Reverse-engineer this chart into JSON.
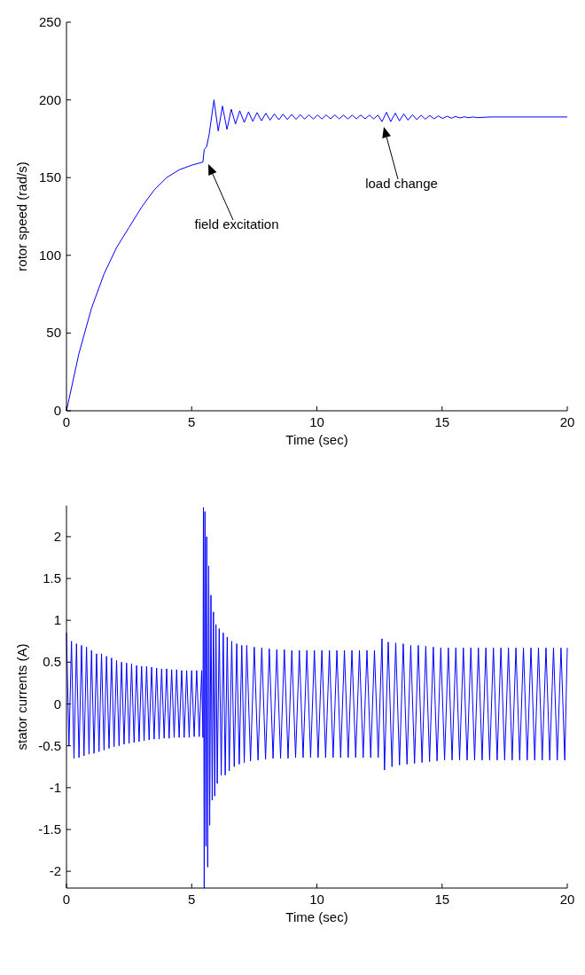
{
  "chart_data": [
    {
      "type": "line",
      "xlabel": "Time (sec)",
      "ylabel": "rotor speed (rad/s)",
      "xlim": [
        0,
        20
      ],
      "ylim": [
        0,
        250
      ],
      "xticks": [
        0,
        5,
        10,
        15,
        20
      ],
      "yticks": [
        0,
        50,
        100,
        150,
        200,
        250
      ],
      "grid": false,
      "line_style": "solid",
      "annotations": [
        "field excitation",
        "load change"
      ],
      "series": [
        {
          "color": "#0000ff",
          "x": [
            0,
            0.5,
            1,
            1.5,
            2,
            2.5,
            3,
            3.5,
            4,
            4.5,
            5,
            5.45,
            5.5,
            5.6,
            5.7,
            5.89,
            6.06,
            6.23,
            6.41,
            6.58,
            6.75,
            6.92,
            7.1,
            7.27,
            7.44,
            7.61,
            7.79,
            7.96,
            8.13,
            8.3,
            8.48,
            8.65,
            8.82,
            8.99,
            9.17,
            9.34,
            9.51,
            9.68,
            9.86,
            10.03,
            10.2,
            10.37,
            10.55,
            10.72,
            10.89,
            11.06,
            11.24,
            11.41,
            11.58,
            11.75,
            11.93,
            12.1,
            12.27,
            12.44,
            12.6,
            12.78,
            12.95,
            13.13,
            13.3,
            13.47,
            13.64,
            13.82,
            13.99,
            14.16,
            14.33,
            14.51,
            14.68,
            14.85,
            15.02,
            15.2,
            15.37,
            15.54,
            15.71,
            15.89,
            16.06,
            16.23,
            16.4,
            17,
            20
          ],
          "values": [
            0,
            37,
            66,
            88,
            105,
            118,
            131,
            142,
            150,
            155,
            158,
            160,
            168,
            170,
            178,
            200,
            180,
            196,
            181,
            194,
            184.5,
            193,
            185.5,
            192.3,
            186.2,
            191.8,
            186.6,
            191.4,
            187,
            191,
            187.2,
            190.8,
            187.4,
            190.6,
            187.5,
            190.5,
            187.6,
            190.4,
            187.7,
            190.3,
            187.7,
            190.3,
            187.8,
            190.3,
            187.8,
            190.2,
            187.8,
            190.2,
            187.8,
            190.2,
            187.8,
            190.2,
            187.8,
            190.2,
            186,
            192,
            186,
            191.5,
            186.5,
            191,
            187,
            190.5,
            187.3,
            190.2,
            187.6,
            190,
            187.8,
            189.7,
            188,
            189.5,
            188.2,
            189.3,
            188.4,
            189.1,
            188.5,
            189,
            188.6,
            189,
            189
          ]
        }
      ]
    },
    {
      "type": "line",
      "xlabel": "Time (sec)",
      "ylabel": "stator currents (A)",
      "xlim": [
        0,
        20
      ],
      "ylim": [
        -2.2,
        2.37
      ],
      "xticks": [
        0,
        5,
        10,
        15,
        20
      ],
      "yticks": [
        -2,
        -1.5,
        -1,
        -0.5,
        0,
        0.5,
        1,
        1.5,
        2
      ],
      "grid": false,
      "line_style": "solid",
      "series": [
        {
          "color": "#0000ff",
          "x": [
            0,
            0.1,
            0.2,
            0.3,
            0.4,
            0.5,
            0.6,
            0.7,
            0.8,
            0.9,
            1,
            1.1,
            1.2,
            1.3,
            1.4,
            1.5,
            1.6,
            1.7,
            1.8,
            1.9,
            2,
            2.1,
            2.2,
            2.3,
            2.4,
            2.5,
            2.6,
            2.7,
            2.8,
            2.9,
            3,
            3.1,
            3.2,
            3.3,
            3.4,
            3.5,
            3.6,
            3.7,
            3.8,
            3.9,
            4,
            4.1,
            4.2,
            4.3,
            4.4,
            4.5,
            4.6,
            4.7,
            4.8,
            4.9,
            5,
            5.1,
            5.2,
            5.3,
            5.4,
            5.45,
            5.47,
            5.5,
            5.53,
            5.57,
            5.6,
            5.64,
            5.68,
            5.72,
            5.77,
            5.82,
            5.87,
            5.92,
            5.97,
            6.02,
            6.1,
            6.18,
            6.26,
            6.34,
            6.42,
            6.5,
            6.6,
            6.7,
            6.8,
            6.9,
            7,
            7.1,
            7.2,
            7.35,
            7.5,
            7.65,
            7.8,
            7.95,
            8.1,
            8.25,
            8.4,
            8.55,
            8.7,
            8.85,
            9,
            9.15,
            9.3,
            9.45,
            9.6,
            9.75,
            9.9,
            10.05,
            10.2,
            10.35,
            10.5,
            10.65,
            10.8,
            10.95,
            11.1,
            11.25,
            11.4,
            11.55,
            11.7,
            11.85,
            12,
            12.15,
            12.3,
            12.45,
            12.6,
            12.7,
            12.85,
            13,
            13.15,
            13.3,
            13.45,
            13.6,
            13.75,
            13.9,
            14.05,
            14.2,
            14.35,
            14.5,
            14.65,
            14.8,
            14.95,
            15.1,
            15.25,
            15.4,
            15.55,
            15.7,
            15.85,
            16,
            16.15,
            16.3,
            16.45,
            16.6,
            16.75,
            16.9,
            17.05,
            17.2,
            17.35,
            17.5,
            17.65,
            17.8,
            17.95,
            18.1,
            18.25,
            18.4,
            18.55,
            18.7,
            18.85,
            19,
            19.15,
            19.3,
            19.45,
            19.6,
            19.75,
            19.9,
            20
          ],
          "values": [
            0.85,
            -0.5,
            0.75,
            -0.65,
            0.72,
            -0.64,
            0.7,
            -0.62,
            0.68,
            -0.6,
            0.64,
            -0.59,
            0.6,
            -0.57,
            0.6,
            -0.55,
            0.57,
            -0.53,
            0.55,
            -0.51,
            0.52,
            -0.5,
            0.5,
            -0.48,
            0.49,
            -0.47,
            0.48,
            -0.46,
            0.46,
            -0.45,
            0.45,
            -0.44,
            0.45,
            -0.43,
            0.44,
            -0.42,
            0.43,
            -0.42,
            0.42,
            -0.41,
            0.42,
            -0.41,
            0.41,
            -0.4,
            0.41,
            -0.4,
            0.4,
            -0.4,
            0.4,
            -0.4,
            0.4,
            -0.39,
            0.4,
            -0.39,
            0.4,
            -0.4,
            2.35,
            -2.2,
            2.3,
            -1.7,
            2,
            -1.95,
            1.65,
            -1.45,
            1.3,
            -1.15,
            1.1,
            -1.1,
            0.95,
            -0.95,
            0.9,
            -0.85,
            0.85,
            -0.85,
            0.8,
            -0.8,
            0.75,
            -0.75,
            0.72,
            -0.72,
            0.7,
            -0.7,
            0.7,
            -0.68,
            0.68,
            -0.67,
            0.67,
            -0.66,
            0.66,
            -0.65,
            0.65,
            -0.65,
            0.65,
            -0.65,
            0.64,
            -0.64,
            0.64,
            -0.64,
            0.64,
            -0.64,
            0.64,
            -0.64,
            0.64,
            -0.64,
            0.64,
            -0.64,
            0.64,
            -0.64,
            0.64,
            -0.64,
            0.64,
            -0.64,
            0.64,
            -0.64,
            0.64,
            -0.64,
            0.64,
            -0.64,
            0.78,
            -0.79,
            0.74,
            -0.75,
            0.73,
            -0.73,
            0.72,
            -0.72,
            0.7,
            -0.71,
            0.7,
            -0.7,
            0.69,
            -0.69,
            0.68,
            -0.68,
            0.67,
            -0.67,
            0.67,
            -0.67,
            0.67,
            -0.67,
            0.67,
            -0.67,
            0.67,
            -0.67,
            0.67,
            -0.67,
            0.67,
            -0.67,
            0.67,
            -0.67,
            0.67,
            -0.67,
            0.67,
            -0.67,
            0.67,
            -0.67,
            0.67,
            -0.67,
            0.67,
            -0.67,
            0.67,
            -0.67,
            0.67,
            -0.67,
            0.67,
            -0.67,
            0.67,
            -0.67,
            0.67
          ]
        }
      ]
    }
  ]
}
